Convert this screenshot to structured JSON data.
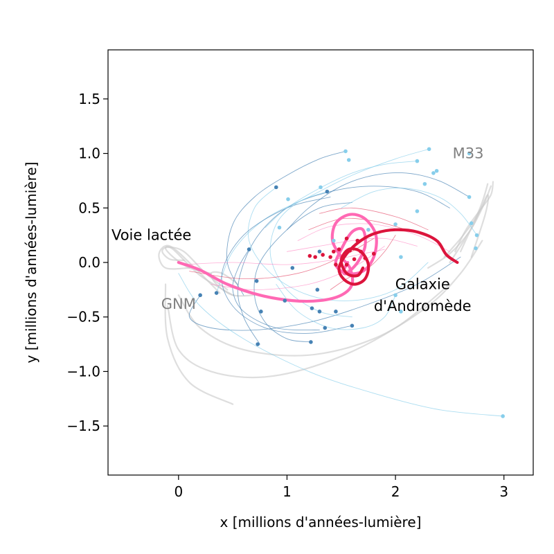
{
  "chart_data": {
    "type": "line",
    "xlabel": "x [millions d'années-lumière]",
    "ylabel": "y [millions d'années-lumière]",
    "xlim": [
      -0.65,
      3.27
    ],
    "ylim": [
      -1.95,
      1.95
    ],
    "xticks": [
      0,
      1,
      2,
      3
    ],
    "xtick_labels": [
      "0",
      "1",
      "2",
      "3"
    ],
    "yticks": [
      -1.5,
      -1.0,
      -0.5,
      0.0,
      0.5,
      1.0,
      1.5
    ],
    "ytick_labels": [
      "−1.5",
      "−1.0",
      "−0.5",
      "0.0",
      "0.5",
      "1.0",
      "1.5"
    ],
    "grid": false,
    "colors": {
      "milky_way": "#ff69b4",
      "andromeda": "#dc143c",
      "satellites_mw": "#4682b4",
      "satellites_m31": "#87ceeb",
      "gray_tracks": "#c8c8c8",
      "annotation_gray": "#808080",
      "annotation_black": "#000000"
    },
    "annotations": [
      {
        "text": "Voie lactée",
        "x": -0.25,
        "y": 0.25,
        "color": "#000000"
      },
      {
        "text": "GNM",
        "x": 0.0,
        "y": -0.38,
        "color": "#808080"
      },
      {
        "text": "M33",
        "x": 2.67,
        "y": 1.0,
        "color": "#808080"
      },
      {
        "text": "Galaxie",
        "x": 2.25,
        "y": -0.2,
        "color": "#000000"
      },
      {
        "text": "d'Andromède",
        "x": 2.25,
        "y": -0.4,
        "color": "#000000"
      }
    ],
    "series": [
      {
        "x": [
          0.0,
          0.2,
          0.45,
          0.75,
          1.05,
          1.3,
          1.5,
          1.6,
          1.58,
          1.5,
          1.42,
          1.45,
          1.58,
          1.72,
          1.82,
          1.8,
          1.7,
          1.55,
          1.45,
          1.5,
          1.6,
          1.7,
          1.72,
          1.65,
          1.55,
          1.52,
          1.56
        ],
        "y": [
          0.0,
          -0.07,
          -0.2,
          -0.3,
          -0.35,
          -0.35,
          -0.3,
          -0.2,
          -0.05,
          0.05,
          0.2,
          0.36,
          0.44,
          0.4,
          0.25,
          0.05,
          -0.08,
          -0.1,
          -0.02,
          0.12,
          0.28,
          0.3,
          0.15,
          0.0,
          -0.1,
          -0.08,
          0.0
        ]
      },
      {
        "x": [
          2.57,
          2.47,
          2.38,
          2.2,
          2.0,
          1.82,
          1.68,
          1.55,
          1.48,
          1.52,
          1.62,
          1.72,
          1.75,
          1.68,
          1.57,
          1.5,
          1.55,
          1.65,
          1.7
        ],
        "y": [
          0.0,
          0.07,
          0.2,
          0.28,
          0.3,
          0.27,
          0.2,
          0.08,
          -0.05,
          -0.15,
          -0.2,
          -0.15,
          -0.02,
          0.1,
          0.12,
          0.02,
          -0.1,
          -0.12,
          -0.05
        ]
      }
    ],
    "satellites_mw": [
      [
        0.9,
        0.69
      ],
      [
        1.37,
        0.65
      ],
      [
        0.65,
        0.12
      ],
      [
        0.72,
        -0.17
      ],
      [
        0.35,
        -0.28
      ],
      [
        0.2,
        -0.3
      ],
      [
        0.98,
        -0.35
      ],
      [
        1.23,
        -0.42
      ],
      [
        1.35,
        -0.6
      ],
      [
        1.45,
        -0.45
      ],
      [
        1.6,
        -0.58
      ],
      [
        1.22,
        -0.73
      ],
      [
        0.73,
        -0.75
      ],
      [
        0.76,
        -0.45
      ],
      [
        1.3,
        -0.45
      ],
      [
        1.28,
        -0.25
      ],
      [
        1.05,
        -0.05
      ],
      [
        1.3,
        0.1
      ]
    ],
    "satellites_m31": [
      [
        1.54,
        1.02
      ],
      [
        1.57,
        0.94
      ],
      [
        2.31,
        1.04
      ],
      [
        2.2,
        0.93
      ],
      [
        2.35,
        0.82
      ],
      [
        2.38,
        0.84
      ],
      [
        2.68,
        1.0
      ],
      [
        2.27,
        0.72
      ],
      [
        2.68,
        0.6
      ],
      [
        2.7,
        0.36
      ],
      [
        2.75,
        0.25
      ],
      [
        2.74,
        0.13
      ],
      [
        2.2,
        0.47
      ],
      [
        2.0,
        0.35
      ],
      [
        2.05,
        0.05
      ],
      [
        2.0,
        -0.3
      ],
      [
        2.05,
        -0.45
      ],
      [
        1.31,
        0.69
      ],
      [
        1.01,
        0.58
      ],
      [
        0.93,
        0.32
      ],
      [
        2.99,
        -1.41
      ],
      [
        1.43,
        0.2
      ],
      [
        1.75,
        0.3
      ]
    ],
    "andromeda_cluster": [
      [
        1.21,
        0.06
      ],
      [
        1.26,
        0.05
      ],
      [
        1.33,
        0.07
      ],
      [
        1.4,
        0.05
      ],
      [
        1.43,
        0.1
      ],
      [
        1.48,
        0.12
      ],
      [
        1.52,
        0.05
      ],
      [
        1.58,
        0.11
      ],
      [
        1.62,
        0.03
      ],
      [
        1.68,
        0.1
      ],
      [
        1.72,
        0.04
      ],
      [
        1.8,
        0.08
      ],
      [
        1.55,
        -0.02
      ],
      [
        1.45,
        -0.02
      ],
      [
        1.65,
        0.2
      ],
      [
        1.55,
        0.22
      ]
    ],
    "gray_tracks": [
      {
        "x": [
          0.05,
          -0.08,
          -0.15,
          -0.1,
          0.05,
          0.25,
          0.45
        ],
        "y": [
          0.02,
          0.03,
          0.1,
          0.14,
          0.1,
          -0.1,
          -0.25
        ]
      },
      {
        "x": [
          0.1,
          -0.12,
          -0.18,
          -0.08,
          0.15,
          0.38
        ],
        "y": [
          -0.05,
          -0.05,
          0.08,
          0.15,
          -0.05,
          -0.28
        ]
      },
      {
        "x": [
          0.3,
          0.1,
          -0.05,
          -0.12,
          -0.05,
          0.2,
          0.5
        ],
        "y": [
          -0.1,
          -0.05,
          0.05,
          0.13,
          0.12,
          -0.12,
          -0.3
        ]
      },
      {
        "x": [
          0.55,
          0.4,
          0.3,
          0.35,
          0.5,
          0.7
        ],
        "y": [
          -0.2,
          -0.1,
          -0.1,
          -0.2,
          -0.3,
          -0.3
        ]
      },
      {
        "x": [
          2.5,
          2.6,
          2.72,
          2.8,
          2.85,
          2.78,
          2.6
        ],
        "y": [
          0.0,
          0.15,
          0.35,
          0.55,
          0.72,
          0.5,
          0.1
        ]
      },
      {
        "x": [
          2.45,
          2.6,
          2.75,
          2.85,
          2.83,
          2.7
        ],
        "y": [
          0.05,
          0.22,
          0.42,
          0.62,
          0.45,
          0.05
        ]
      },
      {
        "x": [
          2.3,
          2.5,
          2.68,
          2.8,
          2.88
        ],
        "y": [
          -0.05,
          0.08,
          0.28,
          0.5,
          0.7
        ]
      },
      {
        "x": [
          2.55,
          2.65,
          2.78,
          2.88,
          2.9
        ],
        "y": [
          0.1,
          0.3,
          0.48,
          0.62,
          0.74
        ]
      },
      {
        "x": [
          0.0,
          0.2,
          0.6,
          1.2,
          1.8,
          2.3,
          2.6,
          2.8
        ],
        "y": [
          -0.3,
          -0.6,
          -0.8,
          -0.85,
          -0.7,
          -0.4,
          -0.1,
          0.2
        ]
      },
      {
        "x": [
          -0.1,
          0.0,
          0.3,
          0.8,
          1.4,
          2.0,
          2.5
        ],
        "y": [
          -0.4,
          -0.8,
          -1.0,
          -1.05,
          -0.9,
          -0.6,
          -0.2
        ]
      },
      {
        "x": [
          -0.12,
          -0.1,
          0.1,
          0.5
        ],
        "y": [
          -0.2,
          -0.7,
          -1.1,
          -1.3
        ]
      }
    ],
    "pink_tracks": [
      {
        "x": [
          0.05,
          0.5,
          1.0,
          1.4,
          1.7,
          1.9
        ],
        "y": [
          -0.02,
          0.0,
          -0.02,
          0.02,
          0.08,
          0.12
        ]
      },
      {
        "x": [
          0.1,
          0.6,
          1.1,
          1.5,
          1.8
        ],
        "y": [
          -0.08,
          -0.15,
          -0.1,
          0.05,
          0.22
        ]
      },
      {
        "x": [
          0.3,
          0.7,
          1.2,
          1.6,
          1.9
        ],
        "y": [
          -0.2,
          -0.25,
          -0.2,
          -0.05,
          0.15
        ]
      },
      {
        "x": [
          1.2,
          1.5,
          1.8,
          2.1,
          2.4
        ],
        "y": [
          0.3,
          0.4,
          0.38,
          0.3,
          0.2
        ]
      },
      {
        "x": [
          1.1,
          1.4,
          1.8,
          2.2,
          2.5
        ],
        "y": [
          0.2,
          0.33,
          0.35,
          0.25,
          0.1
        ]
      },
      {
        "x": [
          1.3,
          1.6,
          2.0,
          2.3
        ],
        "y": [
          0.45,
          0.5,
          0.42,
          0.3
        ]
      },
      {
        "x": [
          1.0,
          1.3,
          1.6,
          1.9,
          2.2
        ],
        "y": [
          0.1,
          0.15,
          0.2,
          0.22,
          0.15
        ]
      },
      {
        "x": [
          1.4,
          1.55,
          1.75,
          1.9,
          2.0
        ],
        "y": [
          -0.25,
          -0.15,
          -0.05,
          0.1,
          0.25
        ]
      }
    ],
    "blue_tracks": [
      {
        "x": [
          0.75,
          0.6,
          0.55,
          0.7,
          1.0,
          1.4,
          1.8,
          2.2,
          2.5
        ],
        "y": [
          -0.75,
          -0.5,
          -0.2,
          0.2,
          0.5,
          0.65,
          0.7,
          0.65,
          0.5
        ]
      },
      {
        "x": [
          0.9,
          0.7,
          0.65,
          0.85,
          1.2,
          1.6,
          2.0,
          2.3
        ],
        "y": [
          0.69,
          0.5,
          0.2,
          -0.1,
          -0.3,
          -0.35,
          -0.25,
          0.0
        ]
      },
      {
        "x": [
          0.2,
          0.1,
          0.3,
          0.7,
          1.2,
          1.7,
          2.2,
          2.6
        ],
        "y": [
          -0.3,
          -0.5,
          -0.6,
          -0.62,
          -0.55,
          -0.4,
          -0.2,
          0.05
        ]
      },
      {
        "x": [
          2.99,
          2.4,
          1.8,
          1.2,
          0.6,
          0.2,
          0.0
        ],
        "y": [
          -1.41,
          -1.35,
          -1.2,
          -1.0,
          -0.7,
          -0.4,
          -0.1
        ]
      },
      {
        "x": [
          1.54,
          1.3,
          1.0,
          0.7,
          0.5,
          0.45,
          0.6
        ],
        "y": [
          1.02,
          0.95,
          0.8,
          0.6,
          0.35,
          0.0,
          -0.3
        ]
      },
      {
        "x": [
          2.31,
          2.0,
          1.6,
          1.2,
          0.8,
          0.5,
          0.35
        ],
        "y": [
          1.04,
          0.95,
          0.8,
          0.6,
          0.4,
          0.1,
          -0.28
        ]
      },
      {
        "x": [
          1.6,
          1.2,
          0.8,
          0.5,
          0.4,
          0.6,
          1.0,
          1.4
        ],
        "y": [
          -0.58,
          -0.65,
          -0.6,
          -0.4,
          -0.1,
          0.25,
          0.5,
          0.6
        ]
      },
      {
        "x": [
          1.37,
          1.1,
          0.9,
          0.85,
          1.0,
          1.3,
          1.6
        ],
        "y": [
          0.65,
          0.55,
          0.35,
          0.05,
          -0.25,
          -0.45,
          -0.5
        ]
      },
      {
        "x": [
          2.68,
          2.4,
          2.1,
          1.8,
          1.5,
          1.2,
          1.0
        ],
        "y": [
          0.6,
          0.75,
          0.82,
          0.8,
          0.7,
          0.5,
          0.3
        ]
      },
      {
        "x": [
          2.2,
          1.9,
          1.6,
          1.3,
          1.0,
          0.8
        ],
        "y": [
          0.93,
          0.9,
          0.82,
          0.68,
          0.5,
          0.32
        ]
      },
      {
        "x": [
          1.22,
          1.0,
          0.8,
          0.7,
          0.75,
          1.0,
          1.3,
          1.6
        ],
        "y": [
          -0.73,
          -0.7,
          -0.55,
          -0.3,
          0.0,
          0.3,
          0.5,
          0.55
        ]
      },
      {
        "x": [
          2.0,
          1.9,
          1.7,
          1.4,
          1.1,
          0.9
        ],
        "y": [
          -0.3,
          -0.5,
          -0.6,
          -0.6,
          -0.45,
          -0.2
        ]
      },
      {
        "x": [
          0.65,
          0.55,
          0.5,
          0.6,
          0.9,
          1.3
        ],
        "y": [
          0.12,
          -0.05,
          -0.25,
          -0.45,
          -0.6,
          -0.62
        ]
      },
      {
        "x": [
          2.75,
          2.6,
          2.4,
          2.1,
          1.8,
          1.5
        ],
        "y": [
          0.25,
          0.45,
          0.6,
          0.68,
          0.65,
          0.5
        ]
      }
    ]
  }
}
